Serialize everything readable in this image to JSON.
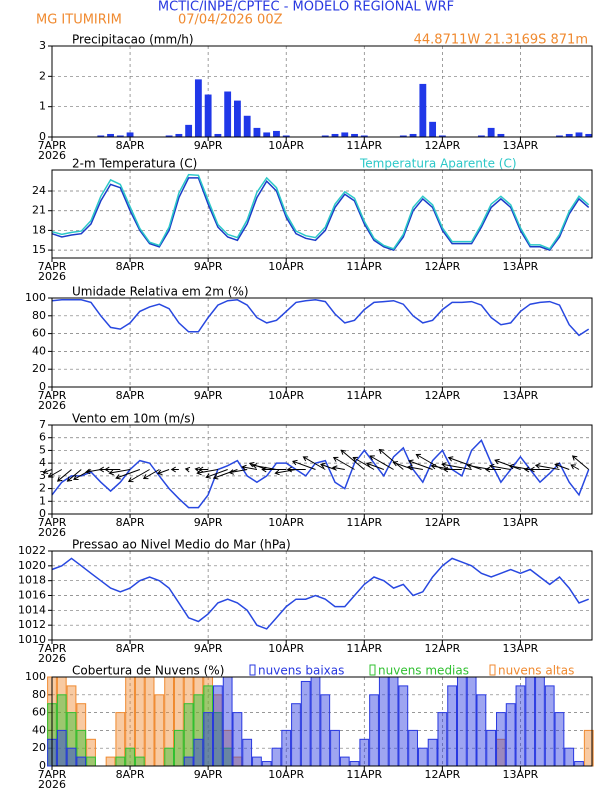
{
  "header": {
    "title": "MCTIC/INPE/CPTEC - MODELO REGIONAL WRF",
    "location": "MG ITUMIRIM",
    "run": "07/04/2026 00Z",
    "coords": "44.8711W 21.3169S 871m"
  },
  "chart_data": [
    {
      "type": "bar",
      "title": "Precipitacao (mm/h)",
      "color": "#2038e8",
      "grid": true,
      "year": "2026",
      "x": [
        0,
        3,
        6,
        9,
        12,
        15,
        18,
        21,
        24,
        27,
        30,
        33,
        36,
        39,
        42,
        45,
        48,
        51,
        54,
        57,
        60,
        63,
        66,
        69,
        72,
        75,
        78,
        81,
        84,
        87,
        90,
        93,
        96,
        99,
        102,
        105,
        108,
        111,
        114,
        117,
        120,
        123,
        126,
        129,
        132,
        135,
        138,
        141,
        144,
        147,
        150,
        153,
        156,
        159,
        162,
        165
      ],
      "values": [
        0,
        0,
        0,
        0,
        0,
        0.05,
        0.1,
        0.05,
        0.15,
        0,
        0,
        0,
        0.05,
        0.1,
        0.4,
        1.9,
        1.4,
        0.1,
        1.5,
        1.2,
        0.7,
        0.3,
        0.15,
        0.2,
        0.05,
        0,
        0,
        0,
        0.05,
        0.1,
        0.15,
        0.1,
        0.05,
        0,
        0,
        0,
        0.05,
        0.1,
        1.75,
        0.5,
        0.05,
        0,
        0,
        0,
        0.05,
        0.3,
        0.1,
        0,
        0,
        0,
        0,
        0,
        0.05,
        0.1,
        0.15,
        0.1
      ],
      "xlim": [
        0,
        166
      ],
      "xticks": [
        {
          "value": 0,
          "label": "7APR"
        },
        {
          "value": 24,
          "label": "8APR"
        },
        {
          "value": 48,
          "label": "9APR"
        },
        {
          "value": 72,
          "label": "10APR"
        },
        {
          "value": 96,
          "label": "11APR"
        },
        {
          "value": 120,
          "label": "12APR"
        },
        {
          "value": 144,
          "label": "13APR"
        }
      ],
      "ylim": [
        0,
        3
      ],
      "yticks": [
        0,
        1,
        2,
        3
      ]
    },
    {
      "type": "line",
      "grid": true,
      "year": "2026",
      "x": [
        0,
        3,
        6,
        9,
        12,
        15,
        18,
        21,
        24,
        27,
        30,
        33,
        36,
        39,
        42,
        45,
        48,
        51,
        54,
        57,
        60,
        63,
        66,
        69,
        72,
        75,
        78,
        81,
        84,
        87,
        90,
        93,
        96,
        99,
        102,
        105,
        108,
        111,
        114,
        117,
        120,
        123,
        126,
        129,
        132,
        135,
        138,
        141,
        144,
        147,
        150,
        153,
        156,
        159,
        162,
        165
      ],
      "series": [
        {
          "name": "2-m Temperatura (C)",
          "color": "#1c3cc8",
          "values": [
            17.5,
            17,
            17.3,
            17.5,
            19,
            22.5,
            25,
            24.5,
            21,
            18,
            16,
            15.5,
            18,
            23,
            26,
            26,
            22,
            18.5,
            17,
            16.5,
            19,
            23,
            25.5,
            24,
            20,
            17.5,
            16.8,
            16.5,
            18,
            21.5,
            23.5,
            22.5,
            19,
            16.5,
            15.5,
            15,
            17,
            21,
            22.8,
            21.5,
            18,
            16,
            16,
            16,
            18.5,
            21.5,
            22.8,
            21.5,
            18,
            15.5,
            15.5,
            15,
            17,
            20.5,
            22.8,
            21.5
          ]
        },
        {
          "name": "Temperatura Aparente (C)",
          "color": "#2cc8c8",
          "values": [
            17.8,
            17.4,
            17.7,
            17.9,
            19.5,
            23.2,
            25.7,
            25,
            21.6,
            18.3,
            16.2,
            15.7,
            18.5,
            23.7,
            26.5,
            26.4,
            22.6,
            18.9,
            17.4,
            16.9,
            19.6,
            23.8,
            26,
            24.5,
            20.5,
            17.9,
            17.2,
            16.9,
            18.5,
            22,
            23.9,
            22.9,
            19.4,
            16.8,
            15.7,
            15.2,
            17.4,
            21.5,
            23.2,
            21.9,
            18.4,
            16.3,
            16.3,
            16.3,
            18.9,
            22,
            23.2,
            21.9,
            18.4,
            15.8,
            15.8,
            15.2,
            17.4,
            20.9,
            23.2,
            21.9
          ]
        }
      ],
      "xlim": [
        0,
        166
      ],
      "xticks": [
        {
          "value": 0,
          "label": "7APR"
        },
        {
          "value": 24,
          "label": "8APR"
        },
        {
          "value": 48,
          "label": "9APR"
        },
        {
          "value": 72,
          "label": "10APR"
        },
        {
          "value": 96,
          "label": "11APR"
        },
        {
          "value": 120,
          "label": "12APR"
        },
        {
          "value": 144,
          "label": "13APR"
        }
      ],
      "ylim": [
        13.8,
        27.2
      ],
      "yticks": [
        15,
        18,
        21,
        24
      ]
    },
    {
      "type": "line",
      "title": "Umidade Relativa em 2m (%)",
      "grid": true,
      "year": "2026",
      "x": [
        0,
        3,
        6,
        9,
        12,
        15,
        18,
        21,
        24,
        27,
        30,
        33,
        36,
        39,
        42,
        45,
        48,
        51,
        54,
        57,
        60,
        63,
        66,
        69,
        72,
        75,
        78,
        81,
        84,
        87,
        90,
        93,
        96,
        99,
        102,
        105,
        108,
        111,
        114,
        117,
        120,
        123,
        126,
        129,
        132,
        135,
        138,
        141,
        144,
        147,
        150,
        153,
        156,
        159,
        162,
        165
      ],
      "series": [
        {
          "color": "#2848e0",
          "values": [
            97,
            98,
            98,
            98,
            95,
            80,
            67,
            65,
            72,
            85,
            90,
            93,
            88,
            72,
            62,
            62,
            78,
            92,
            97,
            98,
            92,
            78,
            72,
            75,
            85,
            95,
            97,
            98,
            96,
            82,
            72,
            75,
            87,
            95,
            96,
            97,
            93,
            80,
            72,
            75,
            87,
            95,
            95,
            96,
            92,
            78,
            70,
            72,
            85,
            93,
            95,
            96,
            92,
            70,
            58,
            65
          ]
        }
      ],
      "xlim": [
        0,
        166
      ],
      "xticks": [
        {
          "value": 0,
          "label": "7APR"
        },
        {
          "value": 24,
          "label": "8APR"
        },
        {
          "value": 48,
          "label": "9APR"
        },
        {
          "value": 72,
          "label": "10APR"
        },
        {
          "value": 96,
          "label": "11APR"
        },
        {
          "value": 120,
          "label": "12APR"
        },
        {
          "value": 144,
          "label": "13APR"
        }
      ],
      "ylim": [
        0,
        100
      ],
      "yticks": [
        0,
        20,
        40,
        60,
        80,
        100
      ]
    },
    {
      "type": "line",
      "title": "Vento em 10m (m/s)",
      "grid": true,
      "year": "2026",
      "x": [
        0,
        3,
        6,
        9,
        12,
        15,
        18,
        21,
        24,
        27,
        30,
        33,
        36,
        39,
        42,
        45,
        48,
        51,
        54,
        57,
        60,
        63,
        66,
        69,
        72,
        75,
        78,
        81,
        84,
        87,
        90,
        93,
        96,
        99,
        102,
        105,
        108,
        111,
        114,
        117,
        120,
        123,
        126,
        129,
        132,
        135,
        138,
        141,
        144,
        147,
        150,
        153,
        156,
        159,
        162,
        165
      ],
      "series": [
        {
          "color": "#2848e0",
          "values": [
            1.5,
            2.5,
            3,
            3,
            3.3,
            2.5,
            1.8,
            2.5,
            3.5,
            4.2,
            4,
            3,
            2,
            1.2,
            0.5,
            0.5,
            1.5,
            3.5,
            3.8,
            4.2,
            3,
            2.5,
            3,
            4,
            4,
            3.5,
            3,
            4,
            4.2,
            2.5,
            2,
            4,
            5,
            4,
            3,
            4.5,
            5.2,
            3.5,
            2.5,
            4.2,
            5,
            3.5,
            3,
            5,
            5.8,
            4,
            2.5,
            3.5,
            4.5,
            3.5,
            2.5,
            3.2,
            4,
            2.5,
            1.5,
            3.5
          ]
        }
      ],
      "wind_dir": [
        70,
        60,
        50,
        50,
        60,
        80,
        90,
        90,
        80,
        70,
        60,
        60,
        70,
        90,
        100,
        100,
        90,
        80,
        70,
        70,
        80,
        100,
        110,
        100,
        90,
        80,
        90,
        110,
        120,
        110,
        100,
        120,
        130,
        120,
        110,
        120,
        130,
        110,
        100,
        110,
        120,
        100,
        90,
        100,
        110,
        100,
        90,
        100,
        110,
        100,
        90,
        90,
        100,
        110,
        120,
        130
      ],
      "xlim": [
        0,
        166
      ],
      "xticks": [
        {
          "value": 0,
          "label": "7APR"
        },
        {
          "value": 24,
          "label": "8APR"
        },
        {
          "value": 48,
          "label": "9APR"
        },
        {
          "value": 72,
          "label": "10APR"
        },
        {
          "value": 96,
          "label": "11APR"
        },
        {
          "value": 120,
          "label": "12APR"
        },
        {
          "value": 144,
          "label": "13APR"
        }
      ],
      "ylim": [
        0,
        7
      ],
      "yticks": [
        0,
        1,
        2,
        3,
        4,
        5,
        6,
        7
      ]
    },
    {
      "type": "line",
      "title": "Pressao ao Nivel Medio do Mar (hPa)",
      "grid": true,
      "year": "2026",
      "x": [
        0,
        3,
        6,
        9,
        12,
        15,
        18,
        21,
        24,
        27,
        30,
        33,
        36,
        39,
        42,
        45,
        48,
        51,
        54,
        57,
        60,
        63,
        66,
        69,
        72,
        75,
        78,
        81,
        84,
        87,
        90,
        93,
        96,
        99,
        102,
        105,
        108,
        111,
        114,
        117,
        120,
        123,
        126,
        129,
        132,
        135,
        138,
        141,
        144,
        147,
        150,
        153,
        156,
        159,
        162,
        165
      ],
      "series": [
        {
          "color": "#2848e0",
          "values": [
            1019.5,
            1020,
            1021,
            1020,
            1019,
            1018,
            1017,
            1016.5,
            1017,
            1018,
            1018.5,
            1018,
            1017,
            1015,
            1013,
            1012.5,
            1013.5,
            1015,
            1015.5,
            1015,
            1014,
            1012,
            1011.5,
            1013,
            1014.5,
            1015.5,
            1015.5,
            1016,
            1015.5,
            1014.5,
            1014.5,
            1016,
            1017.5,
            1018.5,
            1018,
            1017,
            1017.5,
            1016,
            1016.5,
            1018.5,
            1020,
            1021,
            1020.5,
            1020,
            1019,
            1018.5,
            1019,
            1019.5,
            1019,
            1019.5,
            1018.5,
            1017.5,
            1018.5,
            1017,
            1015,
            1015.5
          ]
        }
      ],
      "xlim": [
        0,
        166
      ],
      "xticks": [
        {
          "value": 0,
          "label": "7APR"
        },
        {
          "value": 24,
          "label": "8APR"
        },
        {
          "value": 48,
          "label": "9APR"
        },
        {
          "value": 72,
          "label": "10APR"
        },
        {
          "value": 96,
          "label": "11APR"
        },
        {
          "value": 120,
          "label": "12APR"
        },
        {
          "value": 144,
          "label": "13APR"
        }
      ],
      "ylim": [
        1010,
        1022
      ],
      "yticks": [
        1010,
        1012,
        1014,
        1016,
        1018,
        1020,
        1022
      ]
    },
    {
      "type": "bar",
      "title": "Cobertura de Nuvens (%)",
      "grid": true,
      "year": "2026",
      "x": [
        0,
        3,
        6,
        9,
        12,
        15,
        18,
        21,
        24,
        27,
        30,
        33,
        36,
        39,
        42,
        45,
        48,
        51,
        54,
        57,
        60,
        63,
        66,
        69,
        72,
        75,
        78,
        81,
        84,
        87,
        90,
        93,
        96,
        99,
        102,
        105,
        108,
        111,
        114,
        117,
        120,
        123,
        126,
        129,
        132,
        135,
        138,
        141,
        144,
        147,
        150,
        153,
        156,
        159,
        162,
        165
      ],
      "series": [
        {
          "name": "nuvens baixas",
          "color": "#2838e0",
          "values": [
            30,
            40,
            20,
            10,
            0,
            0,
            0,
            0,
            0,
            0,
            0,
            0,
            0,
            0,
            10,
            30,
            60,
            90,
            100,
            60,
            30,
            10,
            5,
            20,
            40,
            70,
            95,
            100,
            80,
            40,
            10,
            5,
            30,
            80,
            100,
            100,
            90,
            40,
            20,
            30,
            60,
            90,
            100,
            100,
            80,
            40,
            60,
            70,
            90,
            100,
            100,
            90,
            60,
            20,
            5,
            0
          ]
        },
        {
          "name": "nuvens medias",
          "color": "#30c030",
          "values": [
            70,
            80,
            60,
            40,
            10,
            0,
            0,
            10,
            20,
            10,
            0,
            0,
            20,
            40,
            70,
            80,
            90,
            60,
            20,
            0,
            0,
            0,
            0,
            0,
            0,
            0,
            0,
            0,
            0,
            0,
            0,
            0,
            0,
            0,
            0,
            0,
            0,
            0,
            0,
            0,
            0,
            0,
            0,
            0,
            0,
            0,
            0,
            0,
            0,
            0,
            0,
            0,
            0,
            0,
            0,
            0
          ]
        },
        {
          "name": "nuvens altas",
          "color": "#f08a30",
          "values": [
            100,
            100,
            90,
            70,
            30,
            0,
            10,
            60,
            100,
            100,
            100,
            80,
            100,
            100,
            100,
            100,
            100,
            80,
            40,
            10,
            0,
            0,
            0,
            0,
            0,
            0,
            0,
            0,
            0,
            0,
            0,
            0,
            0,
            0,
            0,
            0,
            0,
            0,
            0,
            0,
            0,
            0,
            0,
            0,
            0,
            0,
            30,
            0,
            0,
            0,
            0,
            0,
            0,
            0,
            0,
            40
          ]
        }
      ],
      "xlim": [
        0,
        166
      ],
      "xticks": [
        {
          "value": 0,
          "label": "7APR"
        },
        {
          "value": 24,
          "label": "8APR"
        },
        {
          "value": 48,
          "label": "9APR"
        },
        {
          "value": 72,
          "label": "10APR"
        },
        {
          "value": 96,
          "label": "11APR"
        },
        {
          "value": 120,
          "label": "12APR"
        },
        {
          "value": 144,
          "label": "13APR"
        }
      ],
      "ylim": [
        0,
        100
      ],
      "yticks": [
        0,
        20,
        40,
        60,
        80,
        100
      ]
    }
  ]
}
